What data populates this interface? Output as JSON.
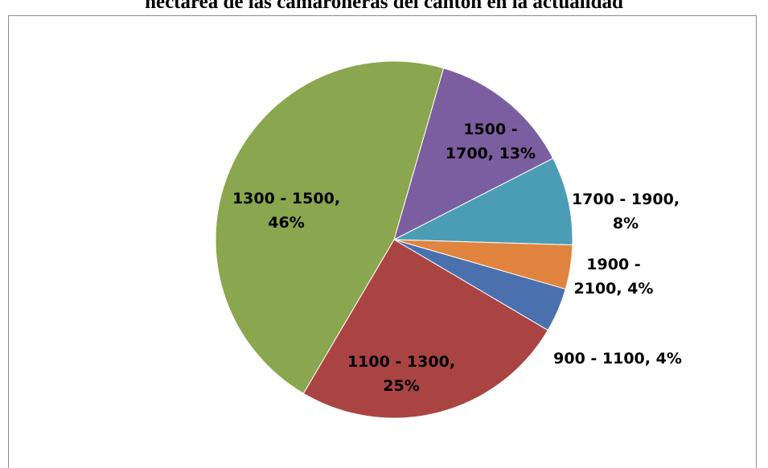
{
  "title": "hectárea de las camaroneras del cantón en la actualidad",
  "chart_data": {
    "type": "pie",
    "start_angle_deg": -73.9,
    "direction": "clockwise",
    "slices": [
      {
        "label": "1500 - 1700",
        "value": 13,
        "percent_label": "13%",
        "display_lines": [
          "1500 -",
          "1700, 13%"
        ],
        "color": "#7b5ea0"
      },
      {
        "label": "1700 - 1900",
        "value": 8,
        "percent_label": "8%",
        "display_lines": [
          "1700 - 1900,",
          "8%"
        ],
        "color": "#4a9db5"
      },
      {
        "label": "1900 - 2100",
        "value": 4,
        "percent_label": "4%",
        "display_lines": [
          "1900 -",
          "2100, 4%"
        ],
        "color": "#e0843f"
      },
      {
        "label": "900 - 1100",
        "value": 4,
        "percent_label": "4%",
        "display_lines": [
          "900 - 1100, 4%"
        ],
        "color": "#4a70ad"
      },
      {
        "label": "1100 - 1300",
        "value": 25,
        "percent_label": "25%",
        "display_lines": [
          "1100 - 1300,",
          "25%"
        ],
        "color": "#a94442"
      },
      {
        "label": "1300 - 1500",
        "value": 46,
        "percent_label": "46%",
        "display_lines": [
          "1300 - 1500,",
          "46%"
        ],
        "color": "#8aa64e"
      }
    ],
    "data_labels": "category, percentage",
    "legend": "none"
  }
}
